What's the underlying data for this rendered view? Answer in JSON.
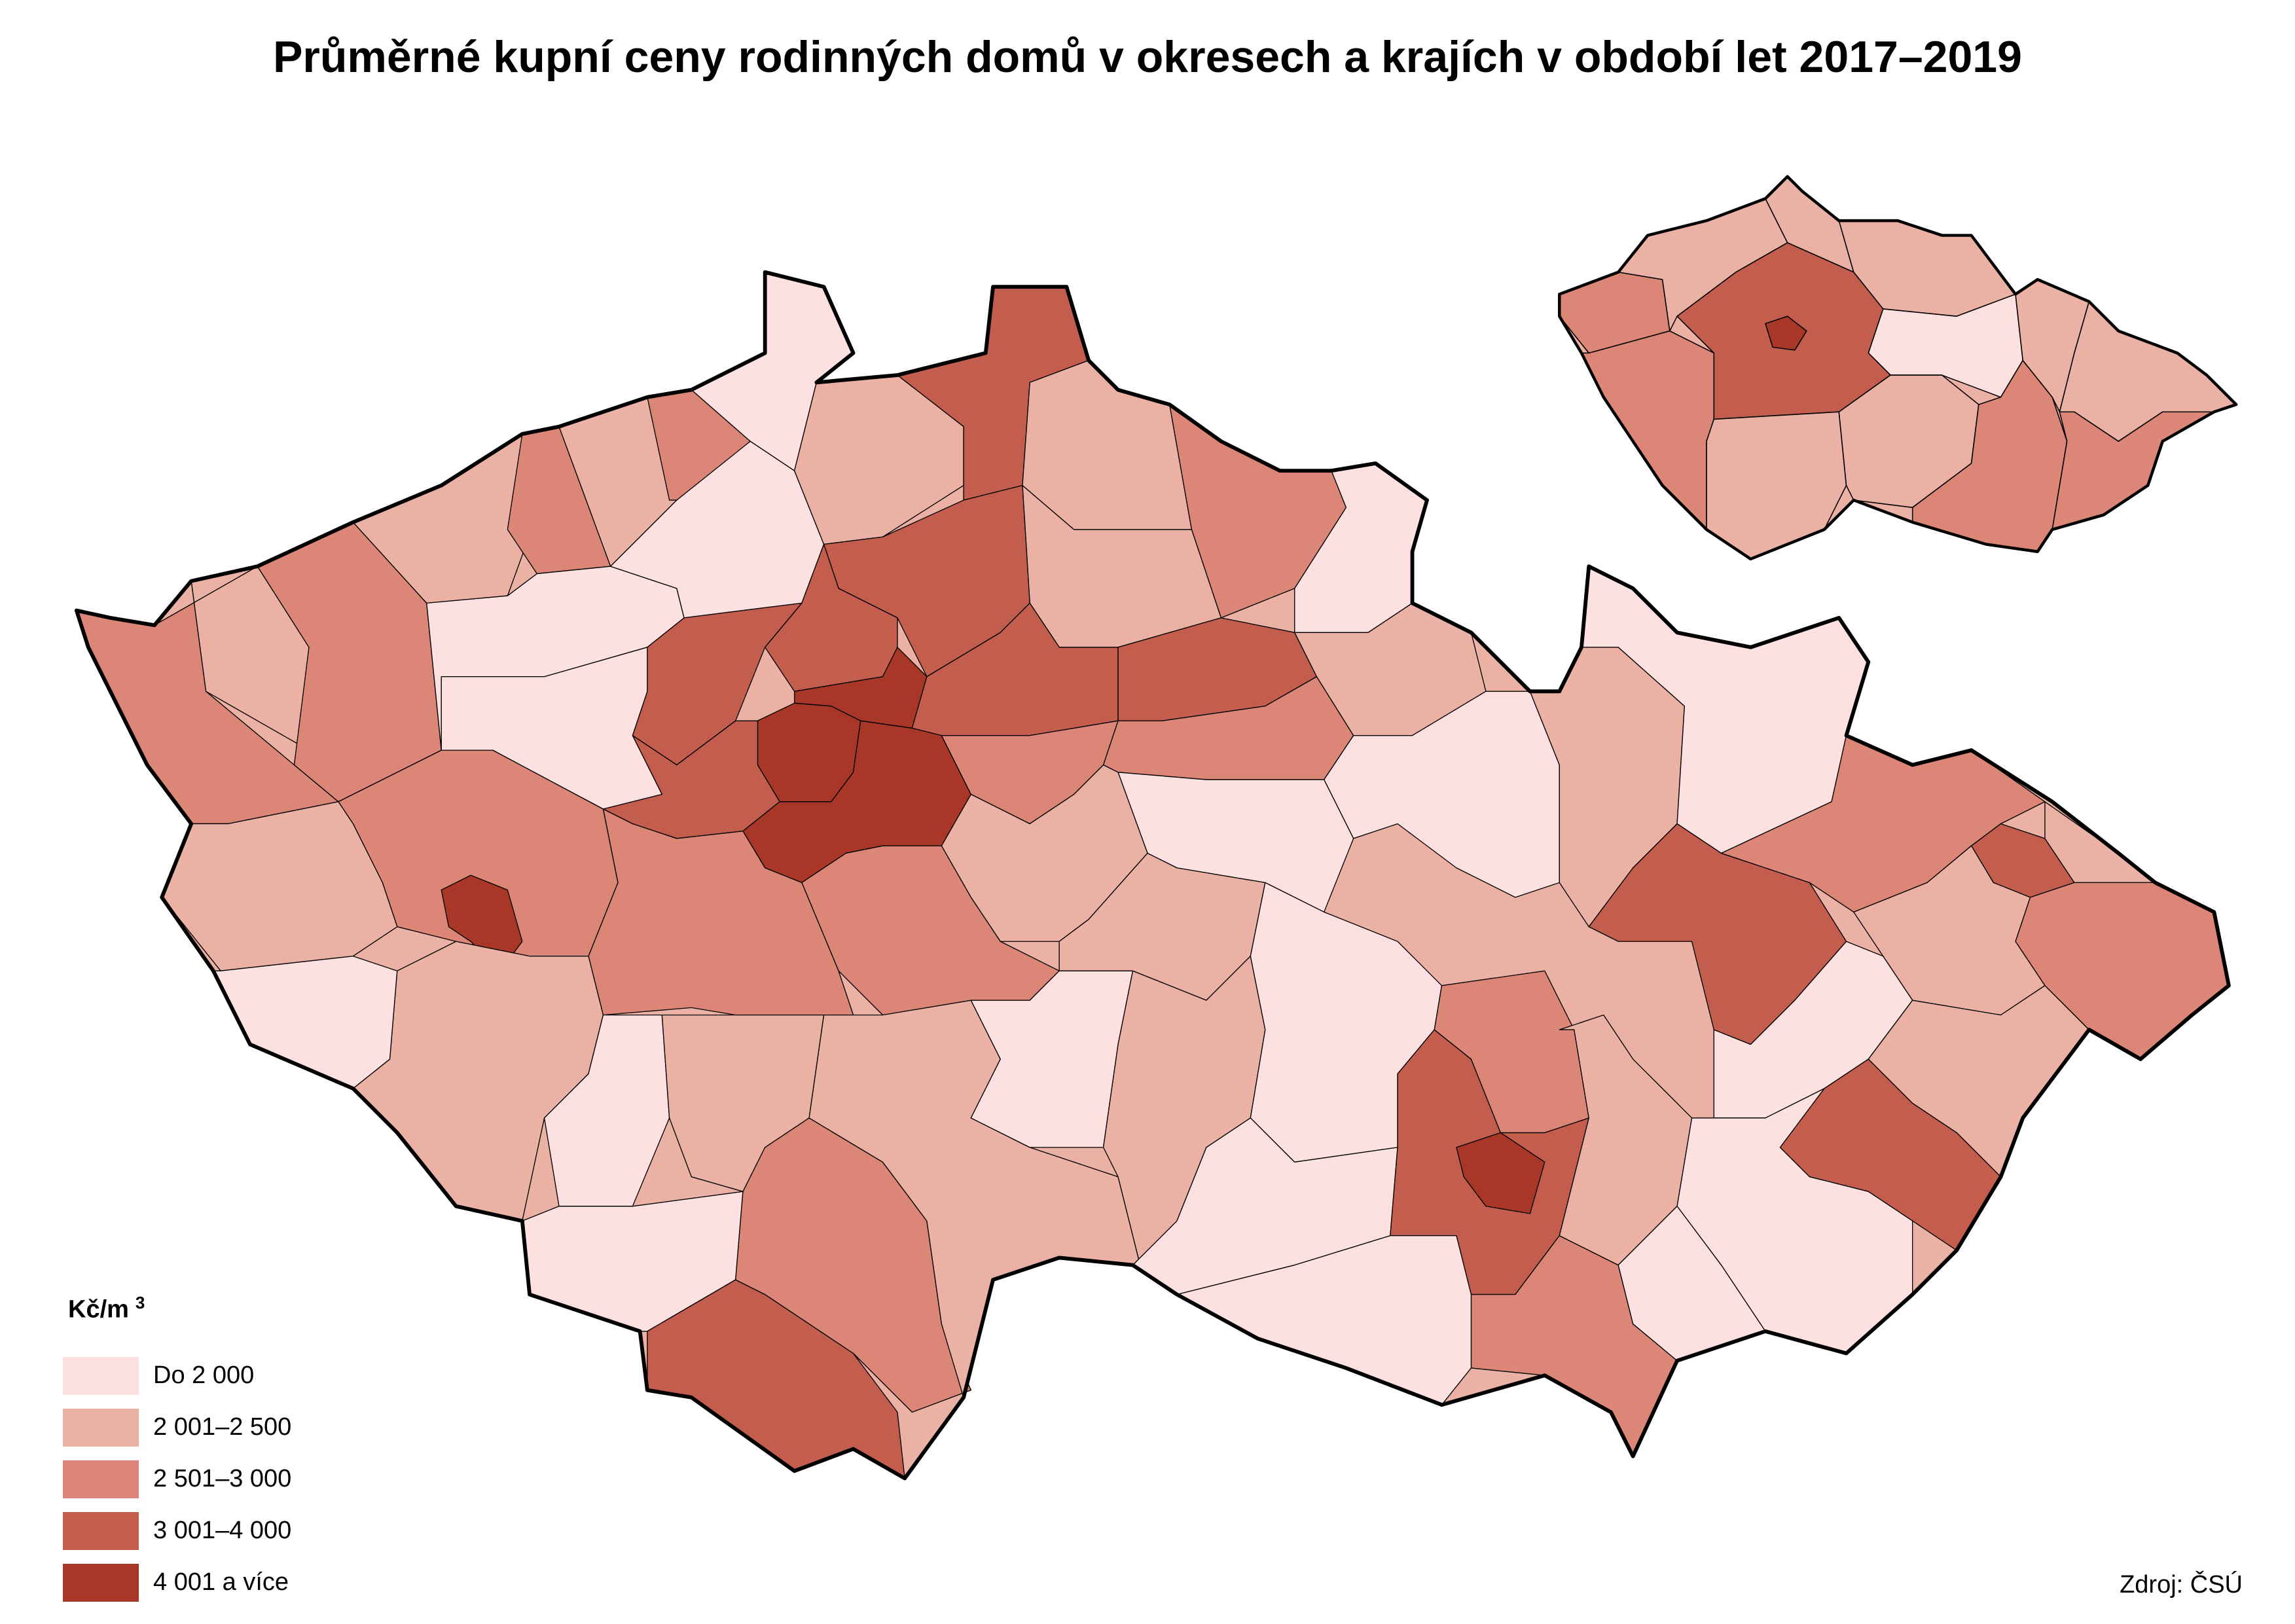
{
  "title": "Průměrné kupní ceny rodinných domů v okresech a krajích v období let 2017–2019",
  "legend": {
    "unit": "Kč/m",
    "unit_superscript": "3",
    "classes": [
      {
        "label": "Do 2 000",
        "color": "#fde0e0"
      },
      {
        "label": "2 001–2 500",
        "color": "#ebb1a5"
      },
      {
        "label": "2 501–3 000",
        "color": "#db8677"
      },
      {
        "label": "3 001–4 000",
        "color": "#c35e4e"
      },
      {
        "label": "4 001 a více",
        "color": "#a93728"
      }
    ]
  },
  "source": "Zdroj: ČSÚ",
  "district_classes": [
    2,
    1,
    2,
    1,
    2,
    1,
    2,
    0,
    0,
    0,
    1,
    3,
    1,
    2,
    0,
    1,
    3,
    3,
    3,
    0,
    4,
    4,
    3,
    3,
    4,
    2,
    3,
    2,
    1,
    0,
    0,
    1,
    2,
    2,
    2,
    4,
    1,
    0,
    1,
    0,
    1,
    0,
    3,
    2,
    1,
    0,
    1,
    1,
    0,
    0,
    3,
    2,
    4,
    2,
    0,
    1,
    1,
    0,
    3,
    2,
    3,
    1,
    2,
    1,
    0,
    1,
    3,
    0,
    0
  ],
  "region_classes": [
    2,
    1,
    1,
    1,
    0,
    3,
    4,
    2,
    1,
    1,
    2,
    1,
    1,
    2
  ]
}
